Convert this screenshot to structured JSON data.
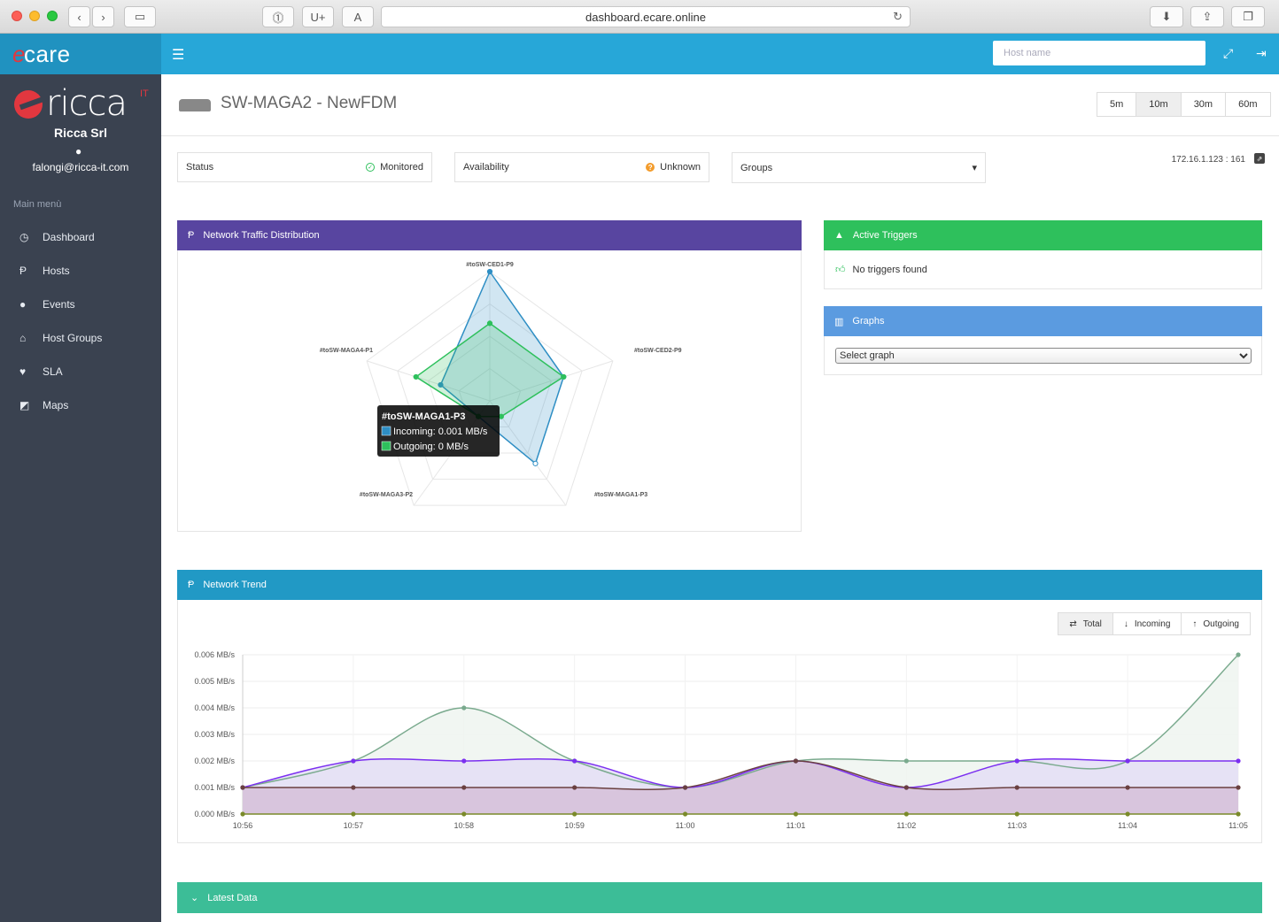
{
  "browser": {
    "url": "dashboard.ecare.online",
    "btn_u": "U+"
  },
  "app": {
    "brand": "care",
    "brand_prefix": "e",
    "hostname_placeholder": "Host name"
  },
  "sidebar": {
    "logo_text": "ricca",
    "logo_it": "IT",
    "company": "Ricca Srl",
    "email": "falongi@ricca-it.com",
    "menu_heading": "Main menù",
    "items": [
      {
        "label": "Dashboard",
        "icon": "dashboard-icon"
      },
      {
        "label": "Hosts",
        "icon": "hosts-icon"
      },
      {
        "label": "Events",
        "icon": "events-icon"
      },
      {
        "label": "Host Groups",
        "icon": "sitemap-icon"
      },
      {
        "label": "SLA",
        "icon": "heartbeat-icon"
      },
      {
        "label": "Maps",
        "icon": "share-icon"
      }
    ]
  },
  "header": {
    "title": "SW-MAGA2 - NewFDM",
    "ranges": [
      "5m",
      "10m",
      "30m",
      "60m"
    ],
    "active_range": "10m"
  },
  "info": {
    "status_label": "Status",
    "status_value": "Monitored",
    "availability_label": "Availability",
    "availability_value": "Unknown",
    "groups_label": "Groups",
    "ip": "172.16.1.123 : 161"
  },
  "panels": {
    "traffic_title": "Network Traffic Distribution",
    "triggers_title": "Active Triggers",
    "triggers_empty": "No triggers found",
    "graphs_title": "Graphs",
    "graphs_select": "Select graph",
    "trend_title": "Network Trend",
    "trend_buttons": [
      "Total",
      "Incoming",
      "Outgoing"
    ],
    "latest_title": "Latest Data"
  },
  "colors": {
    "traffic_head": "#5845a0",
    "triggers_head": "#2ec05c",
    "graphs_head": "#5b9be0",
    "trend_head": "#2199c5",
    "latest_head": "#3cbd97",
    "incoming": "#2e8ec4",
    "outgoing": "#2ec05c"
  },
  "chart_data": [
    {
      "type": "radar",
      "axes": [
        "#toSW-CED1-P9",
        "#toSW-CED2-P9",
        "#toSW-MAGA1-P3",
        "#toSW-MAGA3-P2",
        "#toSW-MAGA4-P1"
      ],
      "series": [
        {
          "name": "Incoming",
          "values": [
            1.0,
            0.6,
            0.6,
            0.15,
            0.4
          ]
        },
        {
          "name": "Outgoing",
          "values": [
            0.6,
            0.6,
            0.15,
            0.15,
            0.6
          ]
        }
      ],
      "tooltip": {
        "title": "#toSW-MAGA1-P3",
        "incoming": "Incoming: 0.001 MB/s",
        "outgoing": "Outgoing: 0 MB/s"
      }
    },
    {
      "type": "area",
      "x": [
        "10:56",
        "10:57",
        "10:58",
        "10:59",
        "11:00",
        "11:01",
        "11:02",
        "11:03",
        "11:04",
        "11:05"
      ],
      "yticks": [
        "0.000 MB/s",
        "0.001 MB/s",
        "0.002 MB/s",
        "0.003 MB/s",
        "0.004 MB/s",
        "0.005 MB/s",
        "0.006 MB/s"
      ],
      "ylim": [
        0,
        0.006
      ],
      "series": [
        {
          "color": "#7aaa8e",
          "fill": "#eef5f0",
          "values": [
            0.001,
            0.002,
            0.004,
            0.002,
            0.001,
            0.002,
            0.002,
            0.002,
            0.002,
            0.006
          ]
        },
        {
          "color": "#7b2ff0",
          "fill": "#e4def6",
          "values": [
            0.001,
            0.002,
            0.002,
            0.002,
            0.001,
            0.002,
            0.001,
            0.002,
            0.002,
            0.002
          ]
        },
        {
          "color": "#6a4040",
          "fill": "#d5c0d8",
          "values": [
            0.001,
            0.001,
            0.001,
            0.001,
            0.001,
            0.002,
            0.001,
            0.001,
            0.001,
            0.001
          ]
        },
        {
          "color": "#7a8a2a",
          "fill": "none",
          "values": [
            0,
            0,
            0,
            0,
            0,
            0,
            0,
            0,
            0,
            0
          ]
        }
      ]
    }
  ]
}
